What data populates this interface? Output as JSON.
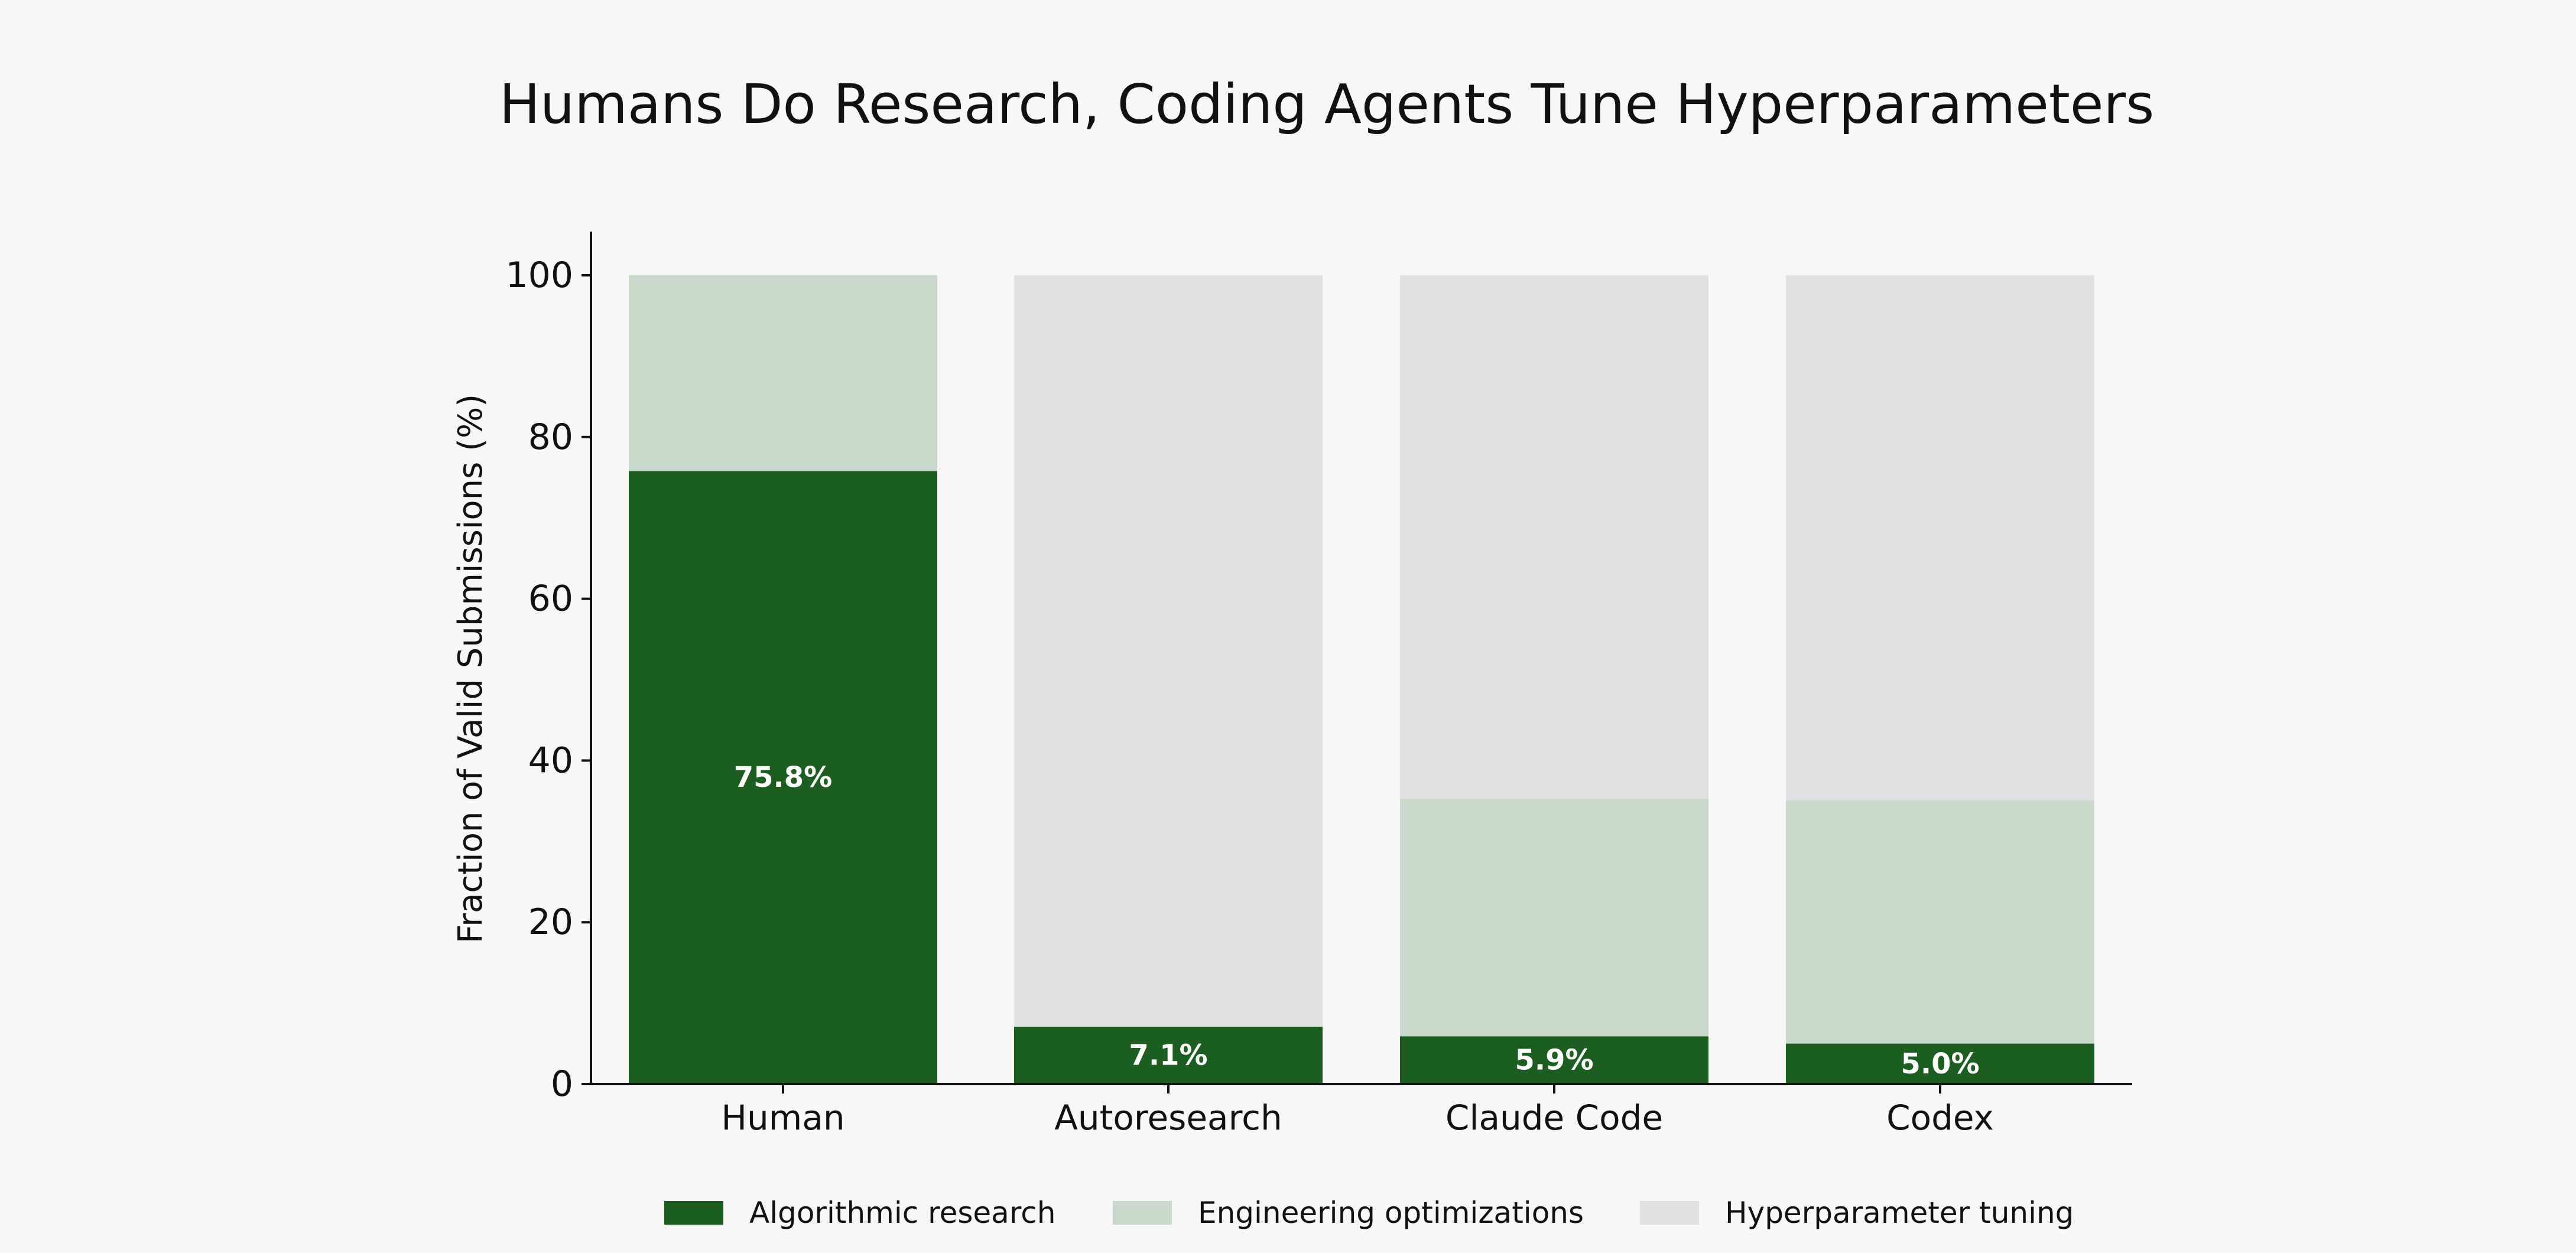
{
  "chart_data": {
    "type": "bar",
    "stacked": true,
    "title": "Humans Do Research, Coding Agents Tune Hyperparameters",
    "xlabel": "",
    "ylabel": "Fraction of Valid Submissions (%)",
    "ylim": [
      0,
      100
    ],
    "yticks": [
      0,
      20,
      40,
      60,
      80,
      100
    ],
    "categories": [
      "Human",
      "Autoresearch",
      "Claude Code",
      "Codex"
    ],
    "series": [
      {
        "name": "Algorithmic research",
        "color": "#1b5e20",
        "values": [
          75.8,
          7.1,
          5.9,
          5.0
        ],
        "labels": [
          "75.8%",
          "7.1%",
          "5.9%",
          "5.0%"
        ]
      },
      {
        "name": "Engineering optimizations",
        "color": "#c8d9cb",
        "values": [
          24.2,
          0.0,
          29.4,
          30.1
        ]
      },
      {
        "name": "Hyperparameter tuning",
        "color": "#e1e1e1",
        "values": [
          0.0,
          92.9,
          64.7,
          64.9
        ]
      }
    ],
    "legend": "bottom-center",
    "grid": false
  }
}
